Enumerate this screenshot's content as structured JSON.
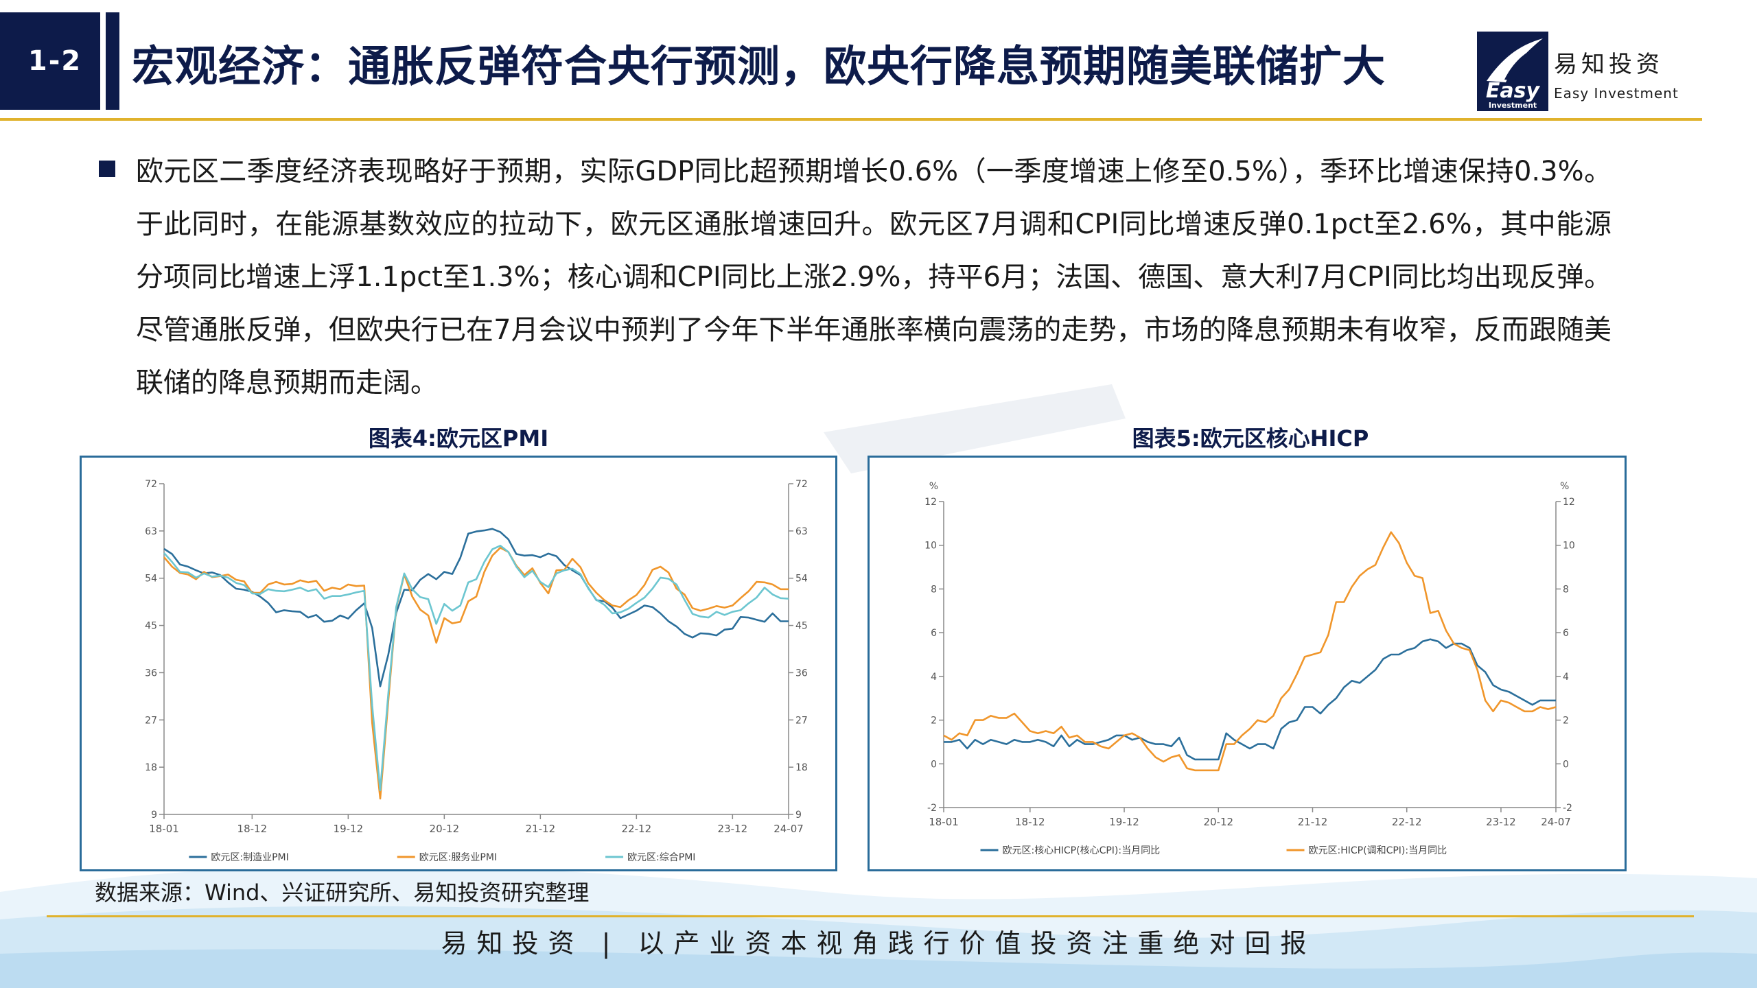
{
  "header": {
    "section_number": "1-2",
    "title": "宏观经济：通胀反弹符合央行预测，欧央行降息预期随美联储扩大",
    "brand_name": "易知投资",
    "brand_en": "Easy Investment",
    "logo_word": "Easy",
    "logo_sub": "Investment"
  },
  "body": {
    "paragraph": "欧元区二季度经济表现略好于预期，实际GDP同比超预期增长0.6%（一季度增速上修至0.5%），季环比增速保持0.3%。于此同时，在能源基数效应的拉动下，欧元区通胀增速回升。欧元区7月调和CPI同比增速反弹0.1pct至2.6%，其中能源分项同比增速上浮1.1pct至1.3%；核心调和CPI同比上涨2.9%，持平6月；法国、德国、意大利7月CPI同比均出现反弹。尽管通胀反弹，但欧央行已在7月会议中预判了今年下半年通胀率横向震荡的走势，市场的降息预期未有收窄，反而跟随美联储的降息预期而走阔。"
  },
  "source_note": "数据来源：Wind、兴证研究所、易知投资研究整理",
  "footer": "易知投资 | 以产业资本视角践行价值投资注重绝对回报",
  "colors": {
    "navy": "#0d1b4a",
    "gold": "#e0b22c",
    "frame": "#2a6c9a",
    "blue": "#2b6f9b",
    "orange": "#f0962b",
    "cyan": "#6cc6d0"
  },
  "chart_data": [
    {
      "type": "line",
      "title": "图表4:欧元区PMI",
      "x_ticks": [
        "18-01",
        "18-12",
        "19-12",
        "20-12",
        "21-12",
        "22-12",
        "23-12",
        "24-07"
      ],
      "x_start": "2018-01",
      "ylim": [
        9,
        72
      ],
      "y_ticks": [
        9,
        18,
        27,
        36,
        45,
        54,
        63,
        72
      ],
      "right_axis": true,
      "grid": false,
      "legend_position": "bottom",
      "series": [
        {
          "name": "欧元区:制造业PMI",
          "color": "#2b6f9b",
          "values": [
            59.6,
            58.6,
            56.6,
            56.2,
            55.5,
            54.9,
            55.1,
            54.6,
            53.2,
            52.0,
            51.8,
            51.4,
            50.5,
            49.3,
            47.5,
            47.9,
            47.7,
            47.6,
            46.5,
            47.0,
            45.7,
            45.9,
            46.9,
            46.3,
            47.9,
            49.2,
            44.5,
            33.4,
            39.4,
            47.4,
            51.8,
            51.7,
            53.7,
            54.8,
            53.8,
            55.2,
            54.8,
            57.9,
            62.5,
            62.9,
            63.1,
            63.4,
            62.8,
            61.4,
            58.6,
            58.3,
            58.4,
            58.0,
            58.7,
            58.2,
            56.5,
            55.5,
            54.6,
            52.1,
            49.8,
            49.6,
            48.4,
            46.4,
            47.1,
            47.8,
            48.8,
            48.5,
            47.3,
            45.8,
            44.8,
            43.4,
            42.7,
            43.5,
            43.4,
            43.1,
            44.2,
            44.4,
            46.6,
            46.5,
            46.1,
            45.7,
            47.3,
            45.8,
            45.8
          ]
        },
        {
          "name": "欧元区:服务业PMI",
          "color": "#f0962b",
          "values": [
            58.0,
            56.2,
            55.0,
            54.7,
            53.8,
            55.2,
            54.2,
            54.4,
            54.7,
            53.7,
            53.4,
            51.2,
            51.2,
            52.8,
            53.3,
            52.8,
            52.9,
            53.6,
            53.2,
            53.5,
            51.6,
            52.2,
            51.9,
            52.8,
            52.5,
            52.6,
            26.4,
            12.0,
            30.5,
            48.3,
            54.7,
            50.5,
            48.0,
            46.9,
            41.7,
            46.4,
            45.4,
            45.7,
            49.6,
            50.5,
            55.2,
            58.3,
            59.8,
            59.0,
            56.4,
            54.6,
            55.9,
            53.1,
            51.1,
            55.5,
            55.6,
            57.7,
            56.1,
            53.0,
            51.2,
            49.8,
            48.8,
            48.5,
            49.8,
            50.8,
            52.7,
            55.6,
            56.2,
            55.1,
            52.0,
            50.9,
            48.3,
            47.8,
            48.2,
            48.7,
            48.4,
            48.8,
            50.2,
            51.5,
            53.3,
            53.2,
            52.8,
            51.9,
            51.9
          ]
        },
        {
          "name": "欧元区:综合PMI",
          "color": "#6cc6d0",
          "values": [
            58.8,
            57.1,
            55.2,
            55.1,
            54.1,
            54.9,
            54.3,
            54.5,
            54.1,
            53.1,
            52.7,
            51.1,
            51.0,
            51.9,
            51.6,
            51.5,
            51.8,
            52.2,
            51.5,
            51.9,
            50.1,
            50.6,
            50.6,
            50.9,
            51.3,
            51.6,
            29.7,
            13.6,
            31.9,
            48.5,
            54.9,
            51.9,
            50.4,
            50.0,
            45.3,
            49.1,
            47.8,
            48.8,
            53.2,
            53.8,
            57.1,
            59.5,
            60.2,
            59.0,
            56.2,
            54.2,
            55.4,
            53.3,
            52.3,
            54.9,
            55.5,
            55.8,
            54.8,
            52.0,
            49.9,
            48.9,
            47.3,
            47.5,
            48.2,
            49.3,
            50.3,
            52.0,
            54.1,
            53.9,
            52.8,
            49.9,
            47.2,
            46.7,
            46.5,
            47.6,
            47.0,
            47.6,
            47.9,
            49.2,
            50.3,
            52.2,
            50.9,
            50.2,
            50.1
          ]
        }
      ]
    },
    {
      "type": "line",
      "title": "图表5:欧元区核心HICP",
      "x_ticks": [
        "18-01",
        "18-12",
        "19-12",
        "20-12",
        "21-12",
        "22-12",
        "23-12",
        "24-07"
      ],
      "x_start": "2018-01",
      "ylim": [
        -2,
        12
      ],
      "y_ticks": [
        -2,
        0,
        2,
        4,
        6,
        8,
        10,
        12
      ],
      "y_unit": "%",
      "right_axis": true,
      "grid": false,
      "legend_position": "bottom",
      "series": [
        {
          "name": "欧元区:核心HICP(核心CPI):当月同比",
          "color": "#2b6f9b",
          "values": [
            1.0,
            1.0,
            1.1,
            0.7,
            1.1,
            0.9,
            1.1,
            1.0,
            0.9,
            1.1,
            1.0,
            1.0,
            1.1,
            1.0,
            0.8,
            1.3,
            0.8,
            1.1,
            0.9,
            0.9,
            1.0,
            1.1,
            1.3,
            1.3,
            1.1,
            1.2,
            1.0,
            0.9,
            0.9,
            0.8,
            1.2,
            0.4,
            0.2,
            0.2,
            0.2,
            0.2,
            1.4,
            1.1,
            0.9,
            0.7,
            0.9,
            0.9,
            0.7,
            1.6,
            1.9,
            2.0,
            2.6,
            2.6,
            2.3,
            2.7,
            3.0,
            3.5,
            3.8,
            3.7,
            4.0,
            4.3,
            4.8,
            5.0,
            5.0,
            5.2,
            5.3,
            5.6,
            5.7,
            5.6,
            5.3,
            5.5,
            5.5,
            5.3,
            4.5,
            4.2,
            3.6,
            3.4,
            3.3,
            3.1,
            2.9,
            2.7,
            2.9,
            2.9,
            2.9
          ]
        },
        {
          "name": "欧元区:HICP(调和CPI):当月同比",
          "color": "#f0962b",
          "values": [
            1.3,
            1.1,
            1.4,
            1.3,
            2.0,
            2.0,
            2.2,
            2.1,
            2.1,
            2.3,
            1.9,
            1.5,
            1.4,
            1.5,
            1.4,
            1.7,
            1.2,
            1.3,
            1.0,
            1.0,
            0.8,
            0.7,
            1.0,
            1.3,
            1.4,
            1.2,
            0.7,
            0.3,
            0.1,
            0.3,
            0.4,
            -0.2,
            -0.3,
            -0.3,
            -0.3,
            -0.3,
            0.9,
            0.9,
            1.3,
            1.6,
            2.0,
            1.9,
            2.2,
            3.0,
            3.4,
            4.1,
            4.9,
            5.0,
            5.1,
            5.9,
            7.4,
            7.4,
            8.1,
            8.6,
            8.9,
            9.1,
            9.9,
            10.6,
            10.1,
            9.2,
            8.6,
            8.5,
            6.9,
            7.0,
            6.1,
            5.5,
            5.3,
            5.2,
            4.3,
            2.9,
            2.4,
            2.9,
            2.8,
            2.6,
            2.4,
            2.4,
            2.6,
            2.5,
            2.6
          ]
        }
      ]
    }
  ]
}
